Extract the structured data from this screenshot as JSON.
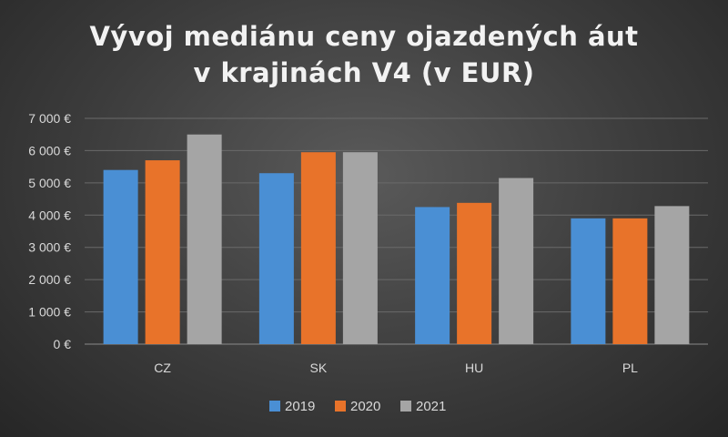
{
  "title_line1": "Vývoj mediánu  ceny ojazdených  áut",
  "title_line2": "v krajinách  V4 (v EUR)",
  "colors": {
    "2019": "#4a8fd4",
    "2020": "#e8732a",
    "2021": "#a5a5a5",
    "grid": "#6a6a6a"
  },
  "chart_data": {
    "type": "bar",
    "title": "Vývoj mediánu  ceny ojazdených  áut v krajinách  V4 (v EUR)",
    "categories": [
      "CZ",
      "SK",
      "HU",
      "PL"
    ],
    "series": [
      {
        "name": "2019",
        "values": [
          5400,
          5300,
          4250,
          3900
        ]
      },
      {
        "name": "2020",
        "values": [
          5700,
          5950,
          4380,
          3900
        ]
      },
      {
        "name": "2021",
        "values": [
          6500,
          5950,
          5150,
          4280
        ]
      }
    ],
    "ylim": [
      0,
      7000
    ],
    "yticks": [
      "0 €",
      "1 000 €",
      "2 000 €",
      "3 000 €",
      "4 000 €",
      "5 000 €",
      "6 000 €",
      "7 000 €"
    ],
    "grid": true,
    "legend_position": "bottom"
  }
}
